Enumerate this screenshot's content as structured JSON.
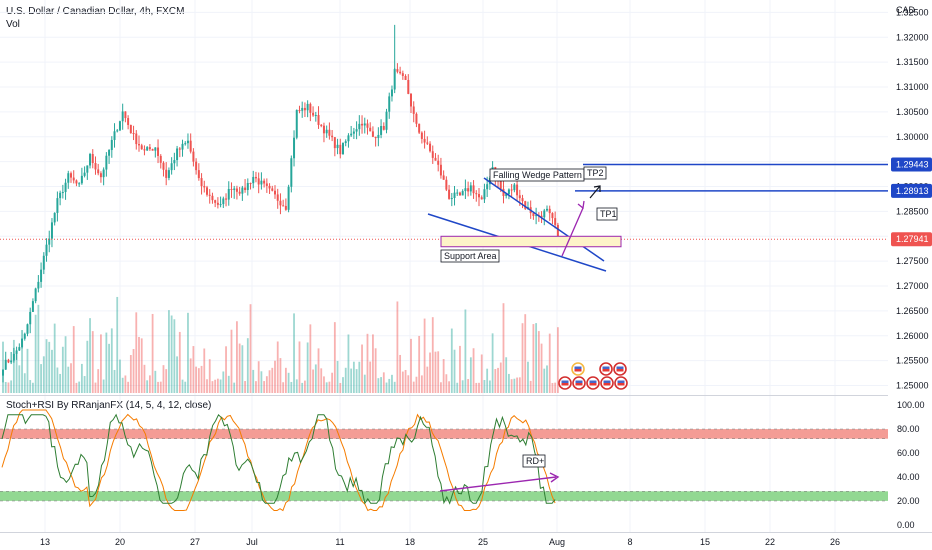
{
  "header": {
    "symbol_title": "U.S. Dollar / Canadian Dollar, 4h, FXCM",
    "vol_label": "Vol",
    "currency": "CAD"
  },
  "colors": {
    "up": "#26a69a",
    "down": "#ef5350",
    "trendline": "#1f47c7",
    "arrow": "#9c27b0",
    "stoch_k": "#2e7d32",
    "stoch_d": "#f57c00",
    "overbought_band": "#f28b82",
    "oversold_band": "#7fd17f"
  },
  "chart_data": [
    {
      "type": "candlestick",
      "title": "U.S. Dollar / Canadian Dollar, 4h, FXCM",
      "x_tick_labels": [
        "13",
        "20",
        "27",
        "Jul",
        "11",
        "18",
        "25",
        "Aug",
        "8",
        "15",
        "22",
        "26"
      ],
      "y_ticks": [
        1.325,
        1.32,
        1.315,
        1.31,
        1.305,
        1.3,
        1.295,
        1.29,
        1.285,
        1.28,
        1.275,
        1.27,
        1.265,
        1.26,
        1.255,
        1.25
      ],
      "y_tick_labels": [
        "1.32500",
        "1.32000",
        "1.31500",
        "1.31000",
        "1.30500",
        "1.30000",
        "1.29500",
        "1.29000",
        "1.28500",
        "1.28000",
        "1.27500",
        "1.27000",
        "1.26500",
        "1.26000",
        "1.25500",
        "1.25000"
      ],
      "ylim": [
        1.2485,
        1.3275
      ],
      "last_price": 1.27941,
      "last_price_label": "1.27941",
      "levels": [
        {
          "name": "TP2",
          "price": 1.29443,
          "label": "1.29443"
        },
        {
          "name": "TP1",
          "price": 1.28913,
          "label": "1.28913"
        }
      ],
      "annotations": {
        "pattern": "Falling Wedge Pattern",
        "tp2": "TP2",
        "tp1": "TP1",
        "support": "Support Area"
      },
      "support_zone": [
        1.2779,
        1.28
      ],
      "close_path": [
        [
          0,
          1.254
        ],
        [
          4,
          1.256
        ],
        [
          8,
          1.26
        ],
        [
          12,
          1.269
        ],
        [
          16,
          1.278
        ],
        [
          20,
          1.287
        ],
        [
          24,
          1.292
        ],
        [
          28,
          1.29
        ],
        [
          32,
          1.296
        ],
        [
          36,
          1.292
        ],
        [
          40,
          1.299
        ],
        [
          44,
          1.305
        ],
        [
          48,
          1.3
        ],
        [
          52,
          1.297
        ],
        [
          56,
          1.298
        ],
        [
          60,
          1.292
        ],
        [
          64,
          1.297
        ],
        [
          68,
          1.299
        ],
        [
          72,
          1.291
        ],
        [
          76,
          1.288
        ],
        [
          80,
          1.286
        ],
        [
          84,
          1.29
        ],
        [
          88,
          1.289
        ],
        [
          92,
          1.292
        ],
        [
          96,
          1.29
        ],
        [
          100,
          1.288
        ],
        [
          104,
          1.286
        ],
        [
          108,
          1.305
        ],
        [
          112,
          1.306
        ],
        [
          116,
          1.303
        ],
        [
          120,
          1.3
        ],
        [
          124,
          1.297
        ],
        [
          128,
          1.301
        ],
        [
          132,
          1.303
        ],
        [
          136,
          1.3
        ],
        [
          140,
          1.302
        ],
        [
          144,
          1.313
        ],
        [
          148,
          1.311
        ],
        [
          152,
          1.302
        ],
        [
          156,
          1.298
        ],
        [
          160,
          1.294
        ],
        [
          164,
          1.288
        ],
        [
          168,
          1.288
        ],
        [
          172,
          1.29
        ],
        [
          176,
          1.287
        ],
        [
          180,
          1.294
        ],
        [
          184,
          1.288
        ],
        [
          188,
          1.29
        ],
        [
          192,
          1.286
        ],
        [
          196,
          1.284
        ],
        [
          200,
          1.285
        ],
        [
          204,
          1.281
        ]
      ],
      "volume_max": 100
    },
    {
      "type": "line",
      "title": "Stoch+RSI By RRanjanFX (14, 5, 4, 12, close)",
      "y_ticks": [
        100,
        80,
        60,
        40,
        20,
        0
      ],
      "y_tick_labels": [
        "100.00",
        "80.00",
        "60.00",
        "40.00",
        "20.00",
        "0.00"
      ],
      "ylim": [
        -6,
        106
      ],
      "overbought_band": [
        72,
        80
      ],
      "oversold_band": [
        20,
        28
      ],
      "annotation": "RD+"
    }
  ]
}
